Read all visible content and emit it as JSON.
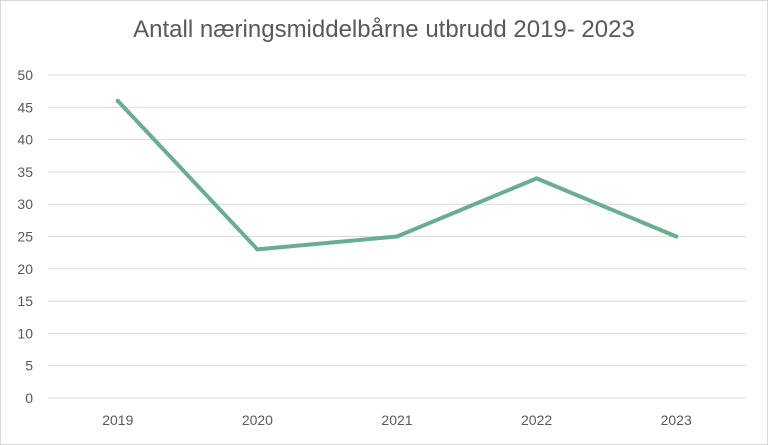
{
  "chart_data": {
    "type": "line",
    "title": "Antall næringsmiddelbårne utbrudd 2019- 2023",
    "xlabel": "",
    "ylabel": "",
    "categories": [
      "2019",
      "2020",
      "2021",
      "2022",
      "2023"
    ],
    "series": [
      {
        "values": [
          46,
          23,
          25,
          34,
          25
        ],
        "color": "#6aae92"
      }
    ],
    "ylim": [
      0,
      50
    ],
    "yticks": [
      0,
      5,
      10,
      15,
      20,
      25,
      30,
      35,
      40,
      45,
      50
    ],
    "grid": true,
    "legend": "none"
  }
}
